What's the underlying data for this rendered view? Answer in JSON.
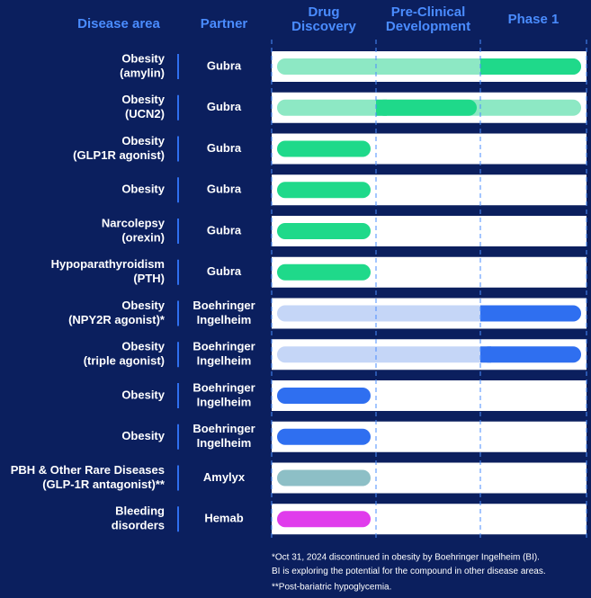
{
  "header": {
    "disease_area": "Disease area",
    "partner": "Partner",
    "stages": [
      [
        "Drug",
        "Discovery"
      ],
      [
        "Pre-Clinical",
        "Development"
      ],
      [
        "Phase 1"
      ]
    ]
  },
  "rows": [
    {
      "disease": [
        "Obesity",
        "(amylin)"
      ],
      "partner": [
        "Gubra"
      ]
    },
    {
      "disease": [
        "Obesity",
        "(UCN2)"
      ],
      "partner": [
        "Gubra"
      ]
    },
    {
      "disease": [
        "Obesity",
        "(GLP1R agonist)"
      ],
      "partner": [
        "Gubra"
      ]
    },
    {
      "disease": [
        "Obesity"
      ],
      "partner": [
        "Gubra"
      ]
    },
    {
      "disease": [
        "Narcolepsy",
        "(orexin)"
      ],
      "partner": [
        "Gubra"
      ]
    },
    {
      "disease": [
        "Hypoparathyroidism",
        "(PTH)"
      ],
      "partner": [
        "Gubra"
      ]
    },
    {
      "disease": [
        "Obesity",
        "(NPY2R agonist)*"
      ],
      "partner": [
        "Boehringer",
        "Ingelheim"
      ]
    },
    {
      "disease": [
        "Obesity",
        "(triple agonist)"
      ],
      "partner": [
        "Boehringer",
        "Ingelheim"
      ]
    },
    {
      "disease": [
        "Obesity"
      ],
      "partner": [
        "Boehringer",
        "Ingelheim"
      ]
    },
    {
      "disease": [
        "Obesity"
      ],
      "partner": [
        "Boehringer",
        "Ingelheim"
      ]
    },
    {
      "disease": [
        "PBH & Other Rare Diseases",
        "(GLP-1R antagonist)**"
      ],
      "partner": [
        "Amylyx"
      ]
    },
    {
      "disease": [
        "Bleeding",
        "disorders"
      ],
      "partner": [
        "Hemab"
      ]
    }
  ],
  "footnotes": [
    "*Oct 31, 2024 discontinued in obesity by Boehringer Ingelheim (BI).",
    "BI is exploring the potential for the compound in other disease areas.",
    "**Post-bariatric hypoglycemia."
  ]
}
